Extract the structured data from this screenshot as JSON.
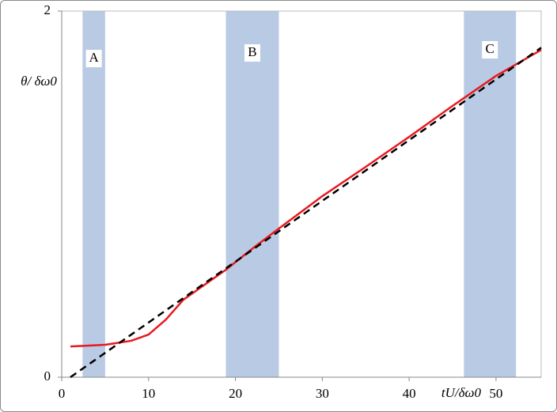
{
  "chart_data": {
    "type": "line",
    "x_label": "tU/δω0",
    "y_label": "θ/ δω0",
    "xlim": [
      0,
      55.2
    ],
    "ylim": [
      0,
      2
    ],
    "xticks": [
      0,
      10,
      20,
      30,
      40,
      50
    ],
    "yticks": [
      0,
      2
    ],
    "bands": [
      {
        "label": "A",
        "range": [
          2.4,
          5.0
        ]
      },
      {
        "label": "B",
        "range": [
          18.9,
          25.0
        ]
      },
      {
        "label": "C",
        "range": [
          46.3,
          52.3
        ]
      }
    ],
    "band_color": "#b9cbe4",
    "series": [
      {
        "color": "#e8191f",
        "dashed": false,
        "x": [
          1,
          5,
          8,
          10,
          12,
          14,
          18.9,
          22,
          25,
          30,
          35,
          40,
          45,
          50,
          55.2
        ],
        "values": [
          0.168,
          0.177,
          0.199,
          0.233,
          0.315,
          0.423,
          0.587,
          0.704,
          0.812,
          0.989,
          1.149,
          1.313,
          1.482,
          1.646,
          1.788
        ]
      },
      {
        "color": "#000000",
        "dashed": true,
        "x": [
          1,
          55.2
        ],
        "values": [
          0,
          1.8
        ]
      }
    ]
  }
}
